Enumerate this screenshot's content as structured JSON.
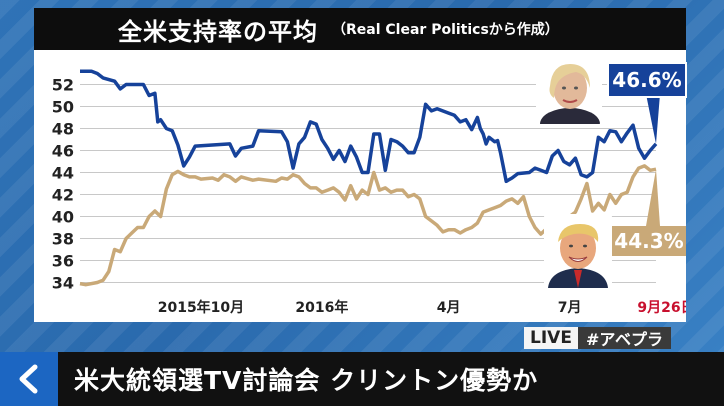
{
  "title": "全米支持率の平均",
  "source": "（Real Clear Politicsから作成）",
  "headline": "米大統領選TV討論会 クリントン優勢か",
  "live_label": "LIVE",
  "hashtag": "#アベプラ",
  "colors": {
    "clinton": "#16429a",
    "trump": "#c9a978",
    "end_date": "#c8102e"
  },
  "icons": [
    "chevron-left-icon"
  ],
  "chart_data": {
    "type": "line",
    "ylim": [
      33.5,
      53.5
    ],
    "xlim": [
      0,
      100
    ],
    "y_ticks": [
      34,
      36,
      38,
      40,
      42,
      44,
      46,
      48,
      50,
      52
    ],
    "x_tick_labels": [
      {
        "label": "2015年10月",
        "x": 21
      },
      {
        "label": "2016年",
        "x": 42
      },
      {
        "label": "4月",
        "x": 64
      },
      {
        "label": "7月",
        "x": 85
      },
      {
        "label": "9月26日",
        "x": 100
      }
    ],
    "series": [
      {
        "end_label": "46.6%",
        "points": [
          [
            0,
            53.2
          ],
          [
            2,
            53.2
          ],
          [
            3,
            53
          ],
          [
            4,
            52.6
          ],
          [
            6,
            52.3
          ],
          [
            7,
            51.6
          ],
          [
            8,
            52
          ],
          [
            11,
            52
          ],
          [
            12,
            51
          ],
          [
            13,
            51.2
          ],
          [
            13.5,
            48.6
          ],
          [
            14,
            48.8
          ],
          [
            15,
            48
          ],
          [
            16,
            47.8
          ],
          [
            17,
            46.5
          ],
          [
            18,
            44.6
          ],
          [
            19,
            45.4
          ],
          [
            20,
            46.4
          ],
          [
            26,
            46.6
          ],
          [
            27,
            45.5
          ],
          [
            28,
            46.2
          ],
          [
            30,
            46.4
          ],
          [
            31,
            47.8
          ],
          [
            35,
            47.7
          ],
          [
            36,
            46.8
          ],
          [
            37,
            44.4
          ],
          [
            38,
            46.6
          ],
          [
            39,
            47.2
          ],
          [
            40,
            48.6
          ],
          [
            41,
            48.4
          ],
          [
            42,
            47
          ],
          [
            43,
            46.2
          ],
          [
            44,
            45.2
          ],
          [
            45,
            46
          ],
          [
            46,
            45
          ],
          [
            47,
            46.4
          ],
          [
            48,
            45.4
          ],
          [
            49,
            44
          ],
          [
            50,
            44
          ],
          [
            51,
            47.5
          ],
          [
            52,
            47.5
          ],
          [
            53,
            44.2
          ],
          [
            54,
            47
          ],
          [
            55,
            46.8
          ],
          [
            56,
            46.4
          ],
          [
            57,
            45.8
          ],
          [
            58,
            45.8
          ],
          [
            59,
            47.2
          ],
          [
            60,
            50.2
          ],
          [
            61,
            49.6
          ],
          [
            62,
            49.8
          ],
          [
            64,
            49.4
          ],
          [
            65,
            49.2
          ],
          [
            66,
            48.6
          ],
          [
            67,
            48.8
          ],
          [
            68,
            47.9
          ],
          [
            69,
            49
          ],
          [
            69.5,
            48
          ],
          [
            70,
            47.5
          ],
          [
            70.5,
            46.6
          ],
          [
            71,
            47.2
          ],
          [
            72,
            46.8
          ],
          [
            72.5,
            46.9
          ],
          [
            73,
            45.8
          ],
          [
            74,
            43.2
          ],
          [
            75,
            43.5
          ],
          [
            76,
            43.9
          ],
          [
            78,
            44
          ],
          [
            79,
            44.4
          ],
          [
            80,
            44.2
          ],
          [
            81,
            44
          ],
          [
            82,
            45.5
          ],
          [
            83,
            46
          ],
          [
            84,
            45
          ],
          [
            85,
            44.7
          ],
          [
            86,
            45.3
          ],
          [
            87,
            43.8
          ],
          [
            88,
            43.6
          ],
          [
            89,
            44
          ],
          [
            90,
            47.2
          ],
          [
            91,
            46.8
          ],
          [
            92,
            47.8
          ],
          [
            93,
            47.7
          ],
          [
            94,
            46.8
          ],
          [
            95,
            47.6
          ],
          [
            96,
            48.3
          ],
          [
            97,
            46.2
          ],
          [
            98,
            45.3
          ],
          [
            99,
            46
          ],
          [
            100,
            46.6
          ]
        ]
      },
      {
        "end_label": "44.3%",
        "points": [
          [
            0,
            33.9
          ],
          [
            1,
            33.8
          ],
          [
            3,
            34
          ],
          [
            4,
            34.2
          ],
          [
            5,
            35
          ],
          [
            6,
            37
          ],
          [
            7,
            36.8
          ],
          [
            8,
            38
          ],
          [
            9,
            38.5
          ],
          [
            10,
            39
          ],
          [
            11,
            39
          ],
          [
            12,
            40
          ],
          [
            13,
            40.5
          ],
          [
            14,
            40
          ],
          [
            15,
            42.5
          ],
          [
            16,
            43.8
          ],
          [
            17,
            44.1
          ],
          [
            18,
            43.8
          ],
          [
            19,
            43.6
          ],
          [
            20,
            43.6
          ],
          [
            21,
            43.4
          ],
          [
            23,
            43.5
          ],
          [
            24,
            43.3
          ],
          [
            25,
            43.8
          ],
          [
            26,
            43.6
          ],
          [
            27,
            43.2
          ],
          [
            28,
            43.6
          ],
          [
            30,
            43.3
          ],
          [
            31,
            43.4
          ],
          [
            34,
            43.2
          ],
          [
            35,
            43.5
          ],
          [
            36,
            43.4
          ],
          [
            37,
            43.8
          ],
          [
            38,
            43.6
          ],
          [
            39,
            43
          ],
          [
            40,
            42.6
          ],
          [
            41,
            42.6
          ],
          [
            42,
            42.2
          ],
          [
            43,
            42.4
          ],
          [
            44,
            42.6
          ],
          [
            45,
            42.2
          ],
          [
            46,
            41.5
          ],
          [
            47,
            42.8
          ],
          [
            48,
            41.6
          ],
          [
            49,
            42.4
          ],
          [
            50,
            42
          ],
          [
            51,
            44
          ],
          [
            52,
            42.4
          ],
          [
            53,
            42.6
          ],
          [
            54,
            42.2
          ],
          [
            55,
            42.4
          ],
          [
            56,
            42.4
          ],
          [
            57,
            41.8
          ],
          [
            58,
            42
          ],
          [
            59,
            41.6
          ],
          [
            60,
            40
          ],
          [
            61,
            39.6
          ],
          [
            62,
            39.2
          ],
          [
            63,
            38.6
          ],
          [
            64,
            38.8
          ],
          [
            65,
            38.8
          ],
          [
            66,
            38.5
          ],
          [
            67,
            38.8
          ],
          [
            68,
            39
          ],
          [
            69,
            39.4
          ],
          [
            70,
            40.4
          ],
          [
            71,
            40.6
          ],
          [
            72,
            40.8
          ],
          [
            73,
            41
          ],
          [
            74,
            41.4
          ],
          [
            75,
            41.6
          ],
          [
            76,
            41.2
          ],
          [
            77,
            41.8
          ],
          [
            78,
            40
          ],
          [
            79,
            39
          ],
          [
            80,
            38.4
          ],
          [
            81,
            38.9
          ],
          [
            82,
            39.4
          ],
          [
            83,
            40
          ],
          [
            84,
            39.8
          ],
          [
            85,
            40
          ],
          [
            86,
            40.4
          ],
          [
            87,
            41.6
          ],
          [
            88,
            43
          ],
          [
            89,
            40.5
          ],
          [
            90,
            41.2
          ],
          [
            91,
            40.6
          ],
          [
            92,
            42
          ],
          [
            93,
            41.2
          ],
          [
            94,
            42
          ],
          [
            95,
            42.2
          ],
          [
            96,
            43.6
          ],
          [
            97,
            44.4
          ],
          [
            98,
            44.6
          ],
          [
            99,
            44.2
          ],
          [
            100,
            44.3
          ]
        ]
      }
    ]
  }
}
